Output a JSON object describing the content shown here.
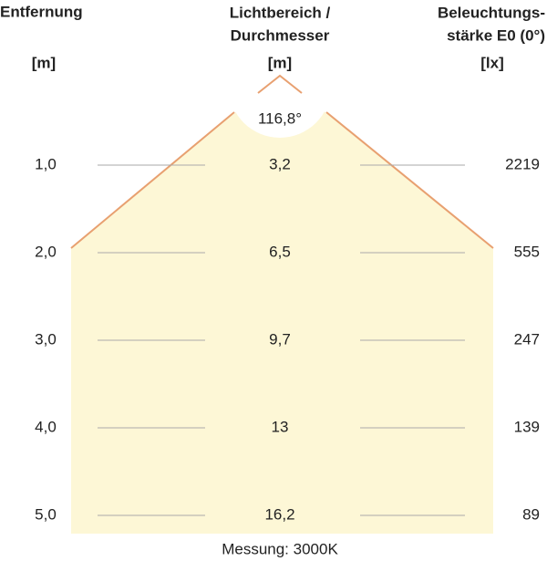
{
  "header": {
    "distance": {
      "lines": [
        "Entfernung"
      ],
      "unit": "[m]"
    },
    "diameter": {
      "lines": [
        "Lichtbereich /",
        "Durchmesser"
      ],
      "unit": "[m]"
    },
    "illuminance": {
      "lines": [
        "Beleuchtungs-",
        "stärke E0 (0°)"
      ],
      "unit": "[lx]"
    }
  },
  "angle": "116,8°",
  "rows": [
    [
      "1,0",
      "3,2",
      "2219"
    ],
    [
      "2,0",
      "6,5",
      "555"
    ],
    [
      "3,0",
      "9,7",
      "247"
    ],
    [
      "4,0",
      "13",
      "139"
    ],
    [
      "5,0",
      "16,2",
      "89"
    ]
  ],
  "footer": "Messung: 3000K"
}
